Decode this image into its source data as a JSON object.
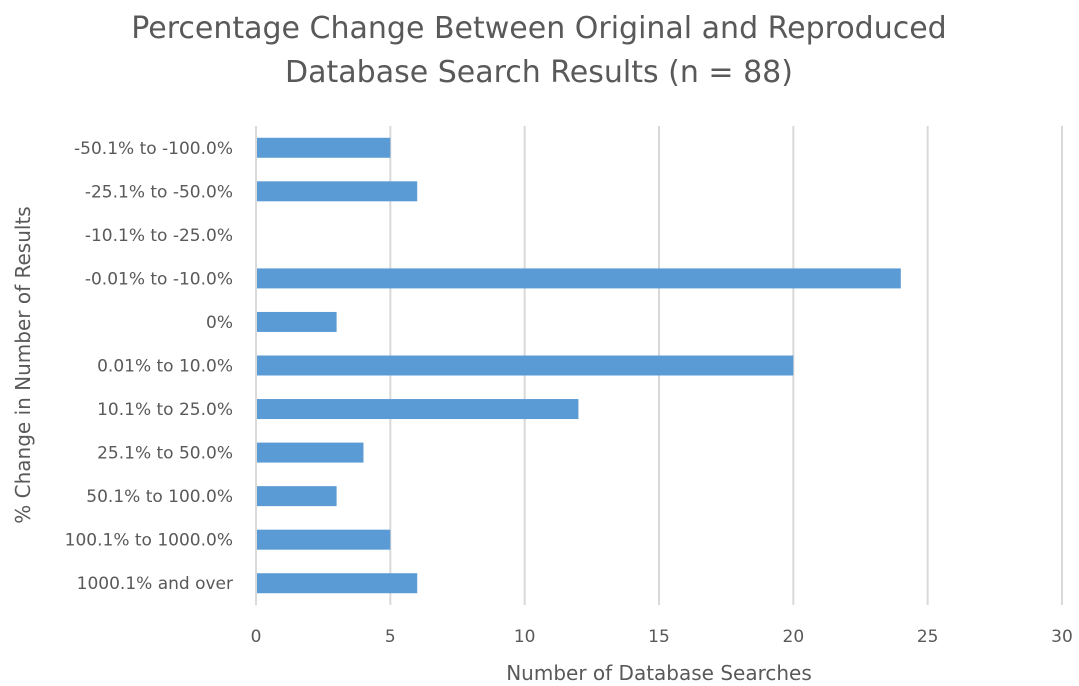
{
  "chart_data": {
    "type": "bar",
    "orientation": "horizontal",
    "title_lines": [
      "Percentage Change Between Original and Reproduced",
      "Database Search Results (n = 88)"
    ],
    "xlabel": "Number of Database Searches",
    "ylabel": "% Change in Number of Results",
    "categories": [
      "-50.1% to -100.0%",
      "-25.1% to -50.0%",
      "-10.1% to -25.0%",
      "-0.01% to -10.0%",
      "0%",
      "0.01% to 10.0%",
      "10.1% to 25.0%",
      "25.1% to 50.0%",
      "50.1% to 100.0%",
      "100.1% to 1000.0%",
      "1000.1% and over"
    ],
    "values": [
      5,
      6,
      0,
      24,
      3,
      20,
      12,
      4,
      3,
      5,
      6
    ],
    "xlim": [
      0,
      30
    ],
    "xticks": [
      "0",
      "5",
      "10",
      "15",
      "20",
      "25",
      "30"
    ],
    "bar_color": "#5b9bd5",
    "grid": true
  }
}
